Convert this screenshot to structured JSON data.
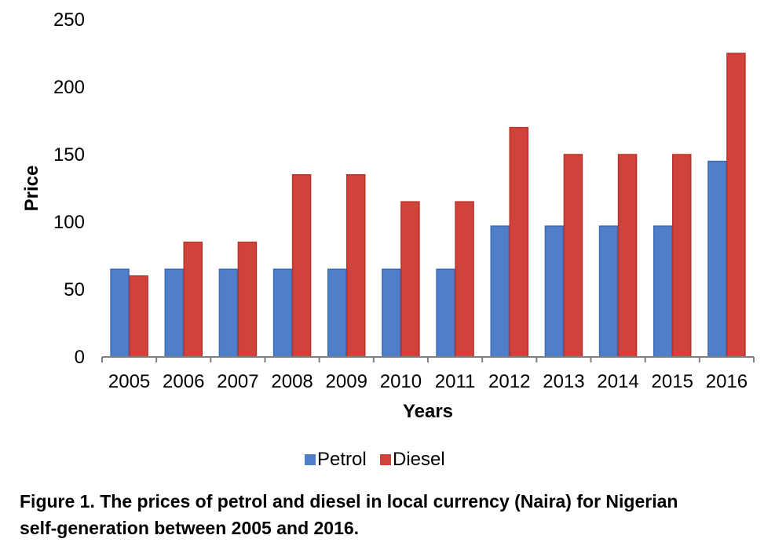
{
  "chart_data": {
    "type": "bar",
    "categories": [
      "2005",
      "2006",
      "2007",
      "2008",
      "2009",
      "2010",
      "2011",
      "2012",
      "2013",
      "2014",
      "2015",
      "2016"
    ],
    "series": [
      {
        "name": "Petrol",
        "color": "#4f7ecb",
        "values": [
          65,
          65,
          65,
          65,
          65,
          65,
          65,
          97,
          97,
          97,
          97,
          145
        ]
      },
      {
        "name": "Diesel",
        "color": "#d0433b",
        "values": [
          60,
          85,
          85,
          135,
          135,
          115,
          115,
          170,
          150,
          150,
          150,
          225
        ]
      }
    ],
    "xlabel": "Years",
    "ylabel": "Price",
    "ylim": [
      0,
      250
    ],
    "yticks": [
      0,
      50,
      100,
      150,
      200,
      250
    ],
    "grid": false,
    "legend_position": "bottom"
  },
  "caption": {
    "line1": "Figure 1. The prices of petrol and diesel in local currency (Naira) for Nigerian",
    "line2": "self-generation between 2005 and 2016."
  }
}
